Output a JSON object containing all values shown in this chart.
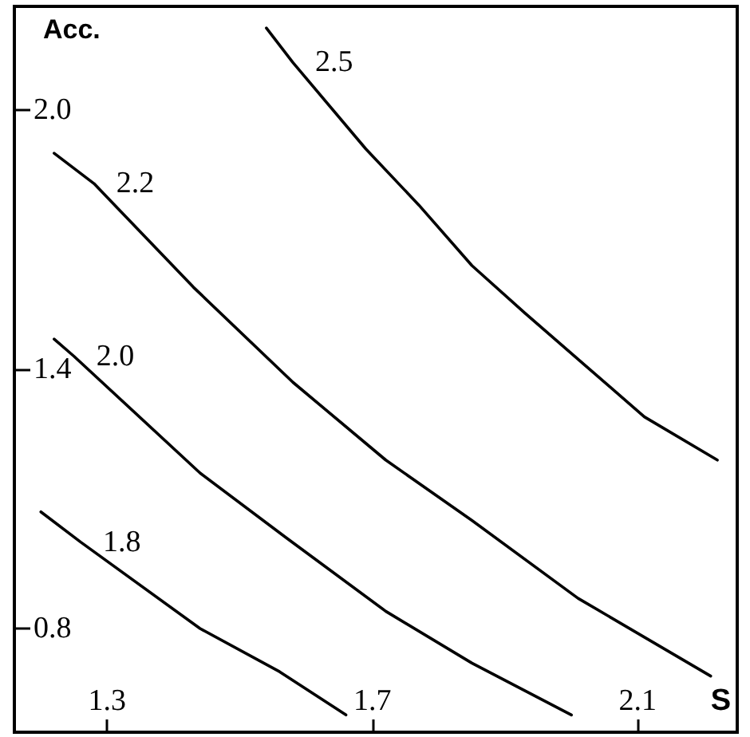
{
  "chart_data": {
    "type": "line",
    "xlabel": "S",
    "ylabel": "Acc.",
    "xlim": [
      1.16,
      2.25
    ],
    "ylim": [
      0.56,
      2.24
    ],
    "xticks": [
      1.3,
      1.7,
      2.1
    ],
    "yticks": [
      0.8,
      1.4,
      {
        "value": 2,
        "label": "2.0"
      }
    ],
    "marker": "none",
    "line_style": "solid",
    "series": [
      {
        "name": "2.5",
        "color": "#000000",
        "x": [
          1.54,
          1.58,
          1.69,
          1.77,
          1.85,
          1.93,
          2.02,
          2.11,
          2.22
        ],
        "values": [
          2.19,
          2.11,
          1.91,
          1.78,
          1.64,
          1.53,
          1.41,
          1.29,
          1.19
        ]
      },
      {
        "name": "2.2",
        "color": "#000000",
        "x": [
          1.22,
          1.28,
          1.43,
          1.58,
          1.72,
          1.85,
          2.01,
          2.21
        ],
        "values": [
          1.9,
          1.83,
          1.59,
          1.37,
          1.19,
          1.05,
          0.87,
          0.69
        ]
      },
      {
        "name": "2.0",
        "color": "#000000",
        "x": [
          1.22,
          1.25,
          1.44,
          1.57,
          1.72,
          1.85,
          2.0
        ],
        "values": [
          1.47,
          1.43,
          1.16,
          1.01,
          0.84,
          0.72,
          0.6
        ]
      },
      {
        "name": "1.8",
        "color": "#000000",
        "x": [
          1.2,
          1.26,
          1.44,
          1.56,
          1.66
        ],
        "values": [
          1.07,
          1.0,
          0.8,
          0.7,
          0.6
        ]
      }
    ]
  }
}
